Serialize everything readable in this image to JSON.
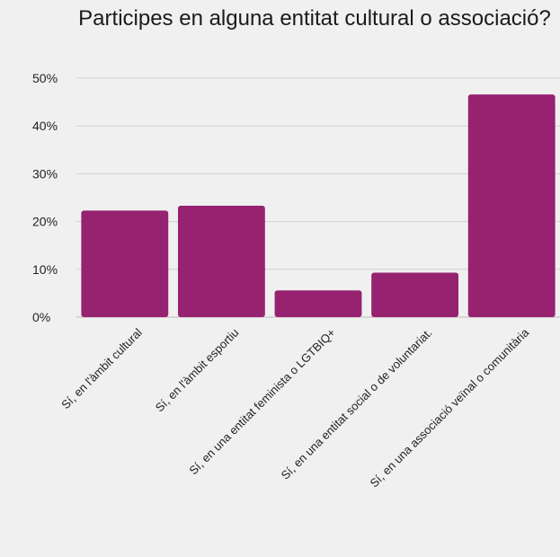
{
  "chart_data": {
    "type": "bar",
    "title": "Participes en alguna entitat cultural o associació?",
    "xlabel": "",
    "ylabel": "",
    "categories": [
      "Sí, en l'àmbit cultural",
      "Sí, en l'àmbit esportiu",
      "Sí, en una entitat feminista o LGTBIQ+",
      "Sí, en una entitat social o de voluntariat.",
      "Sí, en una associació veïnal o comunitària"
    ],
    "values": [
      22.3,
      23.3,
      5.6,
      9.3,
      46.6
    ],
    "unit": "%",
    "ylim": [
      0,
      50
    ],
    "yticks": [
      "0%",
      "10%",
      "20%",
      "30%",
      "40%",
      "50%"
    ],
    "grid": true,
    "legend": "none",
    "bar_color": "#962270"
  }
}
